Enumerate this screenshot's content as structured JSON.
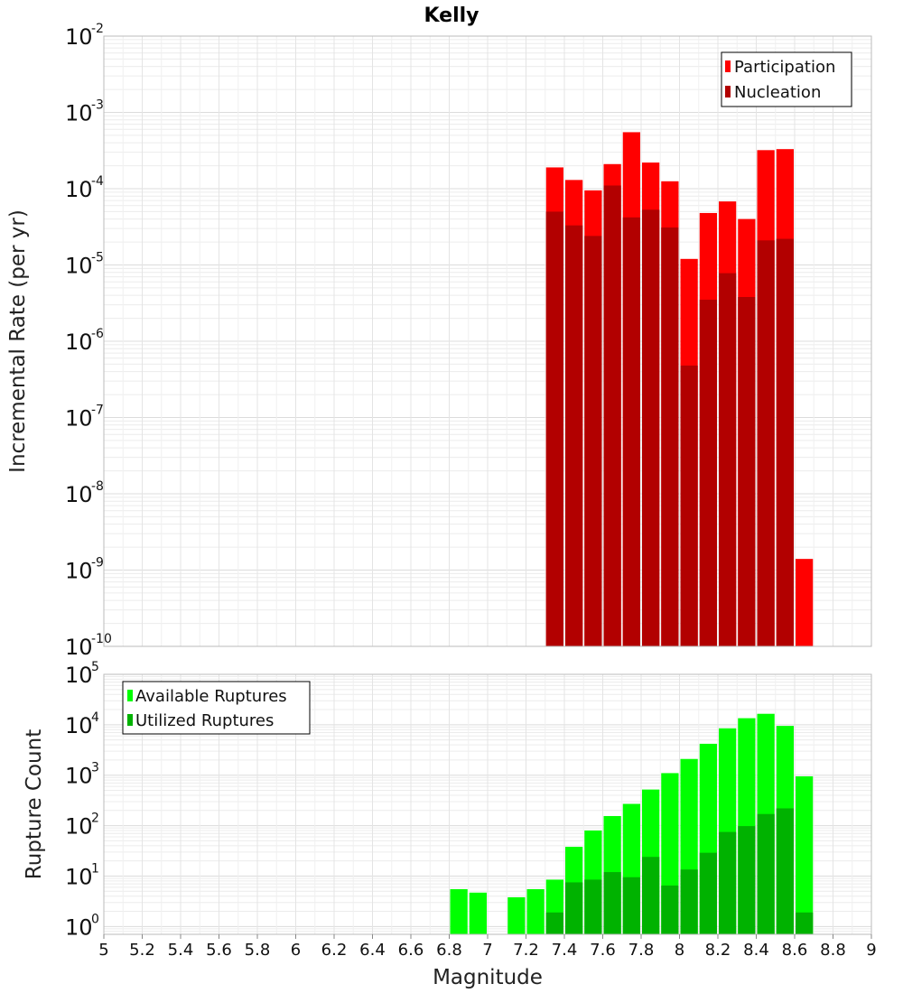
{
  "chart_data": [
    {
      "type": "bar",
      "title": "Kelly",
      "xlabel": "",
      "ylabel": "Incremental Rate (per yr)",
      "y_scale": "log",
      "ylim": [
        1e-10,
        0.01
      ],
      "xlim": [
        5,
        9
      ],
      "bar_width": 0.1,
      "grid": true,
      "legend_position": "top-right",
      "y_ticks": [
        {
          "base": "10",
          "exp": "-2",
          "value": 0.01
        },
        {
          "base": "10",
          "exp": "-3",
          "value": 0.001
        },
        {
          "base": "10",
          "exp": "-4",
          "value": 0.0001
        },
        {
          "base": "10",
          "exp": "-5",
          "value": 1e-05
        },
        {
          "base": "10",
          "exp": "-6",
          "value": 1e-06
        },
        {
          "base": "10",
          "exp": "-7",
          "value": 1e-07
        },
        {
          "base": "10",
          "exp": "-8",
          "value": 1e-08
        },
        {
          "base": "10",
          "exp": "-9",
          "value": 1e-09
        },
        {
          "base": "10",
          "exp": "-10",
          "value": 1e-10
        }
      ],
      "series": [
        {
          "name": "Participation",
          "color": "#ff0000",
          "points": [
            {
              "x": 7.35,
              "y": 0.00019
            },
            {
              "x": 7.45,
              "y": 0.00013
            },
            {
              "x": 7.55,
              "y": 9.5e-05
            },
            {
              "x": 7.65,
              "y": 0.00021
            },
            {
              "x": 7.75,
              "y": 0.00055
            },
            {
              "x": 7.85,
              "y": 0.00022
            },
            {
              "x": 7.95,
              "y": 0.000125
            },
            {
              "x": 8.05,
              "y": 1.2e-05
            },
            {
              "x": 8.15,
              "y": 4.8e-05
            },
            {
              "x": 8.25,
              "y": 6.8e-05
            },
            {
              "x": 8.35,
              "y": 4e-05
            },
            {
              "x": 8.45,
              "y": 0.00032
            },
            {
              "x": 8.55,
              "y": 0.00033
            },
            {
              "x": 8.65,
              "y": 1.4e-09
            }
          ]
        },
        {
          "name": "Nucleation",
          "color": "#b20000",
          "points": [
            {
              "x": 7.35,
              "y": 5e-05
            },
            {
              "x": 7.45,
              "y": 3.3e-05
            },
            {
              "x": 7.55,
              "y": 2.4e-05
            },
            {
              "x": 7.65,
              "y": 0.00011
            },
            {
              "x": 7.75,
              "y": 4.2e-05
            },
            {
              "x": 7.85,
              "y": 5.3e-05
            },
            {
              "x": 7.95,
              "y": 3.1e-05
            },
            {
              "x": 8.05,
              "y": 4.8e-07
            },
            {
              "x": 8.15,
              "y": 3.5e-06
            },
            {
              "x": 8.25,
              "y": 7.8e-06
            },
            {
              "x": 8.35,
              "y": 3.8e-06
            },
            {
              "x": 8.45,
              "y": 2.1e-05
            },
            {
              "x": 8.55,
              "y": 2.2e-05
            }
          ]
        }
      ]
    },
    {
      "type": "bar",
      "title": "",
      "xlabel": "Magnitude",
      "ylabel": "Rupture Count",
      "y_scale": "log",
      "ylim": [
        0.7,
        100000
      ],
      "xlim": [
        5,
        9
      ],
      "bar_width": 0.1,
      "grid": true,
      "legend_position": "top-left",
      "x_ticks": [
        "5",
        "5.2",
        "5.4",
        "5.6",
        "5.8",
        "6",
        "6.2",
        "6.4",
        "6.6",
        "6.8",
        "7",
        "7.2",
        "7.4",
        "7.6",
        "7.8",
        "8",
        "8.2",
        "8.4",
        "8.6",
        "8.8",
        "9"
      ],
      "y_ticks": [
        {
          "base": "10",
          "exp": "5",
          "value": 100000
        },
        {
          "base": "10",
          "exp": "4",
          "value": 10000
        },
        {
          "base": "10",
          "exp": "3",
          "value": 1000
        },
        {
          "base": "10",
          "exp": "2",
          "value": 100
        },
        {
          "base": "10",
          "exp": "1",
          "value": 10
        },
        {
          "base": "10",
          "exp": "0",
          "value": 1
        }
      ],
      "series": [
        {
          "name": "Available Ruptures",
          "color": "#00ff00",
          "points": [
            {
              "x": 6.85,
              "y": 5.5
            },
            {
              "x": 6.95,
              "y": 4.7
            },
            {
              "x": 7.15,
              "y": 3.8
            },
            {
              "x": 7.25,
              "y": 5.5
            },
            {
              "x": 7.35,
              "y": 8.5
            },
            {
              "x": 7.45,
              "y": 38
            },
            {
              "x": 7.55,
              "y": 80
            },
            {
              "x": 7.65,
              "y": 155
            },
            {
              "x": 7.75,
              "y": 270
            },
            {
              "x": 7.85,
              "y": 520
            },
            {
              "x": 7.95,
              "y": 1100
            },
            {
              "x": 8.05,
              "y": 2100
            },
            {
              "x": 8.15,
              "y": 4200
            },
            {
              "x": 8.25,
              "y": 8500
            },
            {
              "x": 8.35,
              "y": 13500
            },
            {
              "x": 8.45,
              "y": 16500
            },
            {
              "x": 8.55,
              "y": 9500
            },
            {
              "x": 8.65,
              "y": 950
            }
          ]
        },
        {
          "name": "Utilized Ruptures",
          "color": "#00b200",
          "points": [
            {
              "x": 7.35,
              "y": 1.9
            },
            {
              "x": 7.45,
              "y": 7.5
            },
            {
              "x": 7.55,
              "y": 8.5
            },
            {
              "x": 7.65,
              "y": 12
            },
            {
              "x": 7.75,
              "y": 9.5
            },
            {
              "x": 7.85,
              "y": 24
            },
            {
              "x": 7.95,
              "y": 6.5
            },
            {
              "x": 8.05,
              "y": 13.5
            },
            {
              "x": 8.15,
              "y": 29
            },
            {
              "x": 8.25,
              "y": 75
            },
            {
              "x": 8.35,
              "y": 98
            },
            {
              "x": 8.45,
              "y": 170
            },
            {
              "x": 8.55,
              "y": 220
            },
            {
              "x": 8.65,
              "y": 1.9
            }
          ]
        }
      ]
    }
  ]
}
